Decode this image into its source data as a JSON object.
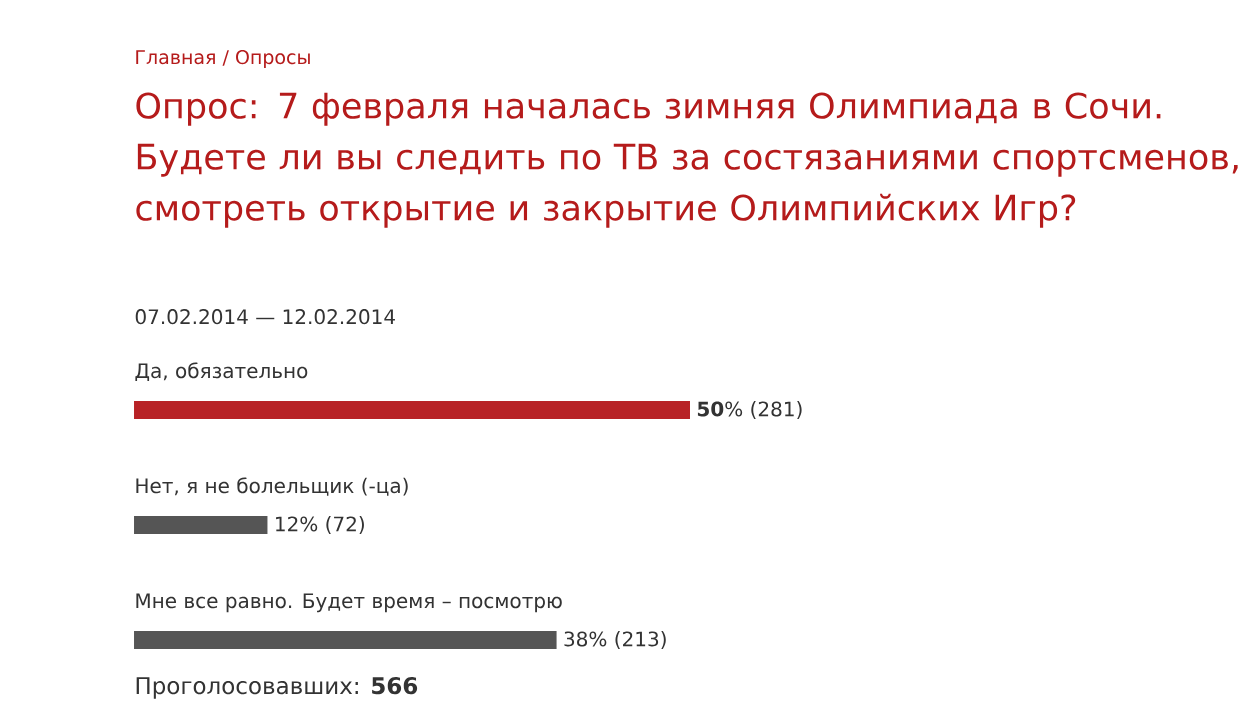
{
  "chart_data": {
    "type": "bar",
    "orientation": "horizontal",
    "title": "Опрос: 7 февраля началась зимняя Олимпиада в Сочи. Будете ли вы следить по ТВ за состязаниями спортсменов, смотреть открытие и закрытие Олимпийских Игр?",
    "subtitle": "07.02.2014 — 12.02.2014",
    "categories": [
      "Да, обязательно",
      "Нет, я не болельщик (-ца)",
      "Мне все равно. Будет время – посмотрю"
    ],
    "values": [
      50,
      12,
      38
    ],
    "colors": [
      "#b82226",
      "#555555",
      "#555555"
    ],
    "value_labels": [
      "**50**% (281)",
      "12% (72)",
      "38% (213)"
    ],
    "tick_labels": false,
    "annotations": [
      "Главная / Опросы",
      "Проголосовавших: **566**"
    ]
  }
}
